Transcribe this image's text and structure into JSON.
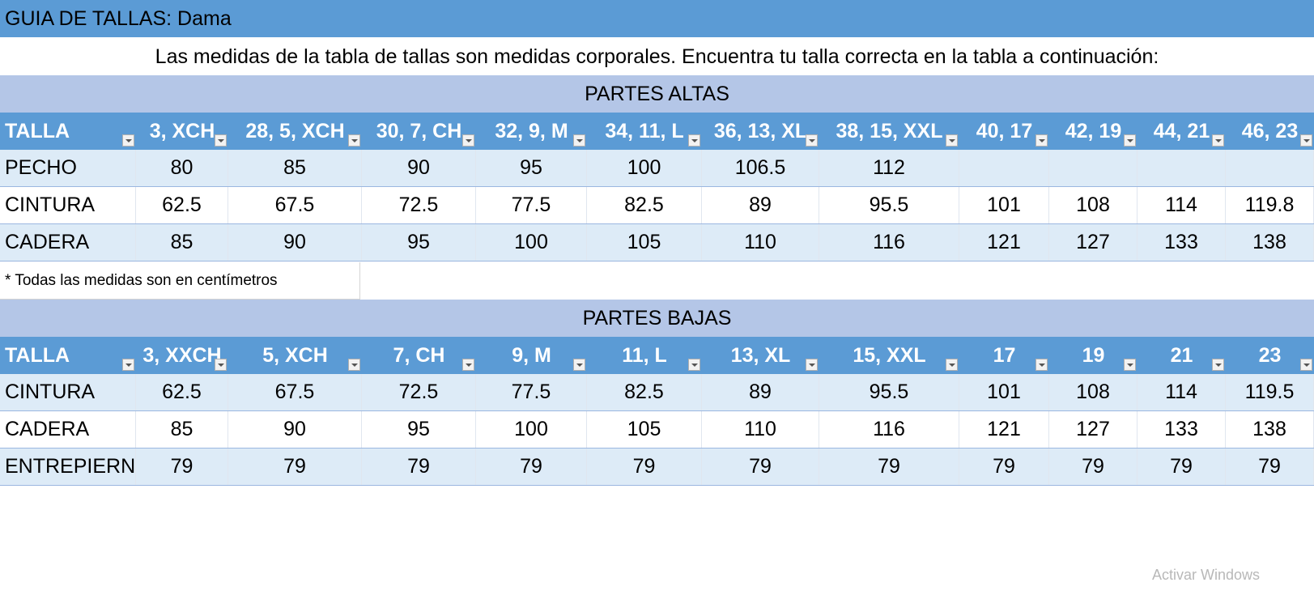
{
  "title": "GUIA DE TALLAS: Dama",
  "subtitle": "Las medidas de la tabla de tallas son medidas corporales. Encuentra tu talla correcta en la tabla a continuación:",
  "colors": {
    "header_blue": "#5b9bd5",
    "section_blue": "#b4c6e7",
    "row_band": "#ddebf7"
  },
  "upper": {
    "section_label": "PARTES ALTAS",
    "headers": [
      "TALLA",
      "3, XCH",
      "28, 5, XCH",
      "30, 7, CH",
      "32, 9, M",
      "34, 11, L",
      "36, 13, XL",
      "38, 15, XXL",
      "40, 17",
      "42, 19",
      "44, 21",
      "46, 23"
    ],
    "rows": [
      [
        "PECHO",
        "80",
        "85",
        "90",
        "95",
        "100",
        "106.5",
        "112",
        "",
        "",
        "",
        ""
      ],
      [
        "CINTURA",
        "62.5",
        "67.5",
        "72.5",
        "77.5",
        "82.5",
        "89",
        "95.5",
        "101",
        "108",
        "114",
        "119.8"
      ],
      [
        "CADERA",
        "85",
        "90",
        "95",
        "100",
        "105",
        "110",
        "116",
        "121",
        "127",
        "133",
        "138"
      ]
    ]
  },
  "note": "* Todas las medidas son en centímetros",
  "lower": {
    "section_label": "PARTES BAJAS",
    "headers": [
      "TALLA",
      "3, XXCH",
      "5, XCH",
      "7, CH",
      "9, M",
      "11, L",
      "13, XL",
      "15, XXL",
      "17",
      "19",
      "21",
      "23"
    ],
    "rows": [
      [
        "CINTURA",
        "62.5",
        "67.5",
        "72.5",
        "77.5",
        "82.5",
        "89",
        "95.5",
        "101",
        "108",
        "114",
        "119.5"
      ],
      [
        "CADERA",
        "85",
        "90",
        "95",
        "100",
        "105",
        "110",
        "116",
        "121",
        "127",
        "133",
        "138"
      ],
      [
        "ENTREPIERNA",
        "79",
        "79",
        "79",
        "79",
        "79",
        "79",
        "79",
        "79",
        "79",
        "79",
        "79"
      ]
    ]
  },
  "watermark": "Activar Windows"
}
